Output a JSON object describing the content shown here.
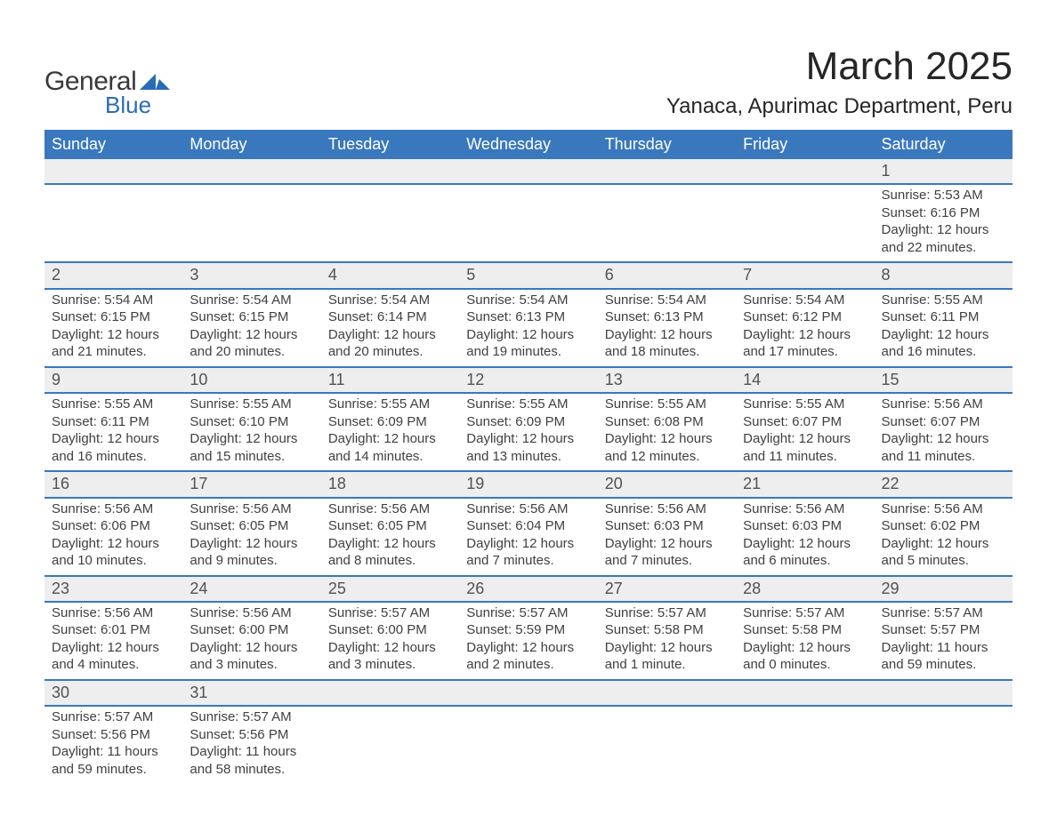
{
  "logo": {
    "text1": "General",
    "text2": "Blue",
    "mark_color": "#2a6cb4"
  },
  "title": "March 2025",
  "location": "Yanaca, Apurimac Department, Peru",
  "styling": {
    "header_bg": "#3a78bd",
    "header_text": "#ffffff",
    "daynum_bg": "#eeeeee",
    "row_border": "#3a78bd",
    "body_text": "#404040",
    "title_fontsize": 44,
    "location_fontsize": 24,
    "weekday_fontsize": 18,
    "cell_fontsize": 15,
    "columns": 7,
    "page_bg": "#ffffff"
  },
  "weekdays": [
    "Sunday",
    "Monday",
    "Tuesday",
    "Wednesday",
    "Thursday",
    "Friday",
    "Saturday"
  ],
  "weeks": [
    [
      null,
      null,
      null,
      null,
      null,
      null,
      {
        "n": "1",
        "sunrise": "Sunrise: 5:53 AM",
        "sunset": "Sunset: 6:16 PM",
        "daylight": "Daylight: 12 hours and 22 minutes."
      }
    ],
    [
      {
        "n": "2",
        "sunrise": "Sunrise: 5:54 AM",
        "sunset": "Sunset: 6:15 PM",
        "daylight": "Daylight: 12 hours and 21 minutes."
      },
      {
        "n": "3",
        "sunrise": "Sunrise: 5:54 AM",
        "sunset": "Sunset: 6:15 PM",
        "daylight": "Daylight: 12 hours and 20 minutes."
      },
      {
        "n": "4",
        "sunrise": "Sunrise: 5:54 AM",
        "sunset": "Sunset: 6:14 PM",
        "daylight": "Daylight: 12 hours and 20 minutes."
      },
      {
        "n": "5",
        "sunrise": "Sunrise: 5:54 AM",
        "sunset": "Sunset: 6:13 PM",
        "daylight": "Daylight: 12 hours and 19 minutes."
      },
      {
        "n": "6",
        "sunrise": "Sunrise: 5:54 AM",
        "sunset": "Sunset: 6:13 PM",
        "daylight": "Daylight: 12 hours and 18 minutes."
      },
      {
        "n": "7",
        "sunrise": "Sunrise: 5:54 AM",
        "sunset": "Sunset: 6:12 PM",
        "daylight": "Daylight: 12 hours and 17 minutes."
      },
      {
        "n": "8",
        "sunrise": "Sunrise: 5:55 AM",
        "sunset": "Sunset: 6:11 PM",
        "daylight": "Daylight: 12 hours and 16 minutes."
      }
    ],
    [
      {
        "n": "9",
        "sunrise": "Sunrise: 5:55 AM",
        "sunset": "Sunset: 6:11 PM",
        "daylight": "Daylight: 12 hours and 16 minutes."
      },
      {
        "n": "10",
        "sunrise": "Sunrise: 5:55 AM",
        "sunset": "Sunset: 6:10 PM",
        "daylight": "Daylight: 12 hours and 15 minutes."
      },
      {
        "n": "11",
        "sunrise": "Sunrise: 5:55 AM",
        "sunset": "Sunset: 6:09 PM",
        "daylight": "Daylight: 12 hours and 14 minutes."
      },
      {
        "n": "12",
        "sunrise": "Sunrise: 5:55 AM",
        "sunset": "Sunset: 6:09 PM",
        "daylight": "Daylight: 12 hours and 13 minutes."
      },
      {
        "n": "13",
        "sunrise": "Sunrise: 5:55 AM",
        "sunset": "Sunset: 6:08 PM",
        "daylight": "Daylight: 12 hours and 12 minutes."
      },
      {
        "n": "14",
        "sunrise": "Sunrise: 5:55 AM",
        "sunset": "Sunset: 6:07 PM",
        "daylight": "Daylight: 12 hours and 11 minutes."
      },
      {
        "n": "15",
        "sunrise": "Sunrise: 5:56 AM",
        "sunset": "Sunset: 6:07 PM",
        "daylight": "Daylight: 12 hours and 11 minutes."
      }
    ],
    [
      {
        "n": "16",
        "sunrise": "Sunrise: 5:56 AM",
        "sunset": "Sunset: 6:06 PM",
        "daylight": "Daylight: 12 hours and 10 minutes."
      },
      {
        "n": "17",
        "sunrise": "Sunrise: 5:56 AM",
        "sunset": "Sunset: 6:05 PM",
        "daylight": "Daylight: 12 hours and 9 minutes."
      },
      {
        "n": "18",
        "sunrise": "Sunrise: 5:56 AM",
        "sunset": "Sunset: 6:05 PM",
        "daylight": "Daylight: 12 hours and 8 minutes."
      },
      {
        "n": "19",
        "sunrise": "Sunrise: 5:56 AM",
        "sunset": "Sunset: 6:04 PM",
        "daylight": "Daylight: 12 hours and 7 minutes."
      },
      {
        "n": "20",
        "sunrise": "Sunrise: 5:56 AM",
        "sunset": "Sunset: 6:03 PM",
        "daylight": "Daylight: 12 hours and 7 minutes."
      },
      {
        "n": "21",
        "sunrise": "Sunrise: 5:56 AM",
        "sunset": "Sunset: 6:03 PM",
        "daylight": "Daylight: 12 hours and 6 minutes."
      },
      {
        "n": "22",
        "sunrise": "Sunrise: 5:56 AM",
        "sunset": "Sunset: 6:02 PM",
        "daylight": "Daylight: 12 hours and 5 minutes."
      }
    ],
    [
      {
        "n": "23",
        "sunrise": "Sunrise: 5:56 AM",
        "sunset": "Sunset: 6:01 PM",
        "daylight": "Daylight: 12 hours and 4 minutes."
      },
      {
        "n": "24",
        "sunrise": "Sunrise: 5:56 AM",
        "sunset": "Sunset: 6:00 PM",
        "daylight": "Daylight: 12 hours and 3 minutes."
      },
      {
        "n": "25",
        "sunrise": "Sunrise: 5:57 AM",
        "sunset": "Sunset: 6:00 PM",
        "daylight": "Daylight: 12 hours and 3 minutes."
      },
      {
        "n": "26",
        "sunrise": "Sunrise: 5:57 AM",
        "sunset": "Sunset: 5:59 PM",
        "daylight": "Daylight: 12 hours and 2 minutes."
      },
      {
        "n": "27",
        "sunrise": "Sunrise: 5:57 AM",
        "sunset": "Sunset: 5:58 PM",
        "daylight": "Daylight: 12 hours and 1 minute."
      },
      {
        "n": "28",
        "sunrise": "Sunrise: 5:57 AM",
        "sunset": "Sunset: 5:58 PM",
        "daylight": "Daylight: 12 hours and 0 minutes."
      },
      {
        "n": "29",
        "sunrise": "Sunrise: 5:57 AM",
        "sunset": "Sunset: 5:57 PM",
        "daylight": "Daylight: 11 hours and 59 minutes."
      }
    ],
    [
      {
        "n": "30",
        "sunrise": "Sunrise: 5:57 AM",
        "sunset": "Sunset: 5:56 PM",
        "daylight": "Daylight: 11 hours and 59 minutes."
      },
      {
        "n": "31",
        "sunrise": "Sunrise: 5:57 AM",
        "sunset": "Sunset: 5:56 PM",
        "daylight": "Daylight: 11 hours and 58 minutes."
      },
      null,
      null,
      null,
      null,
      null
    ]
  ]
}
